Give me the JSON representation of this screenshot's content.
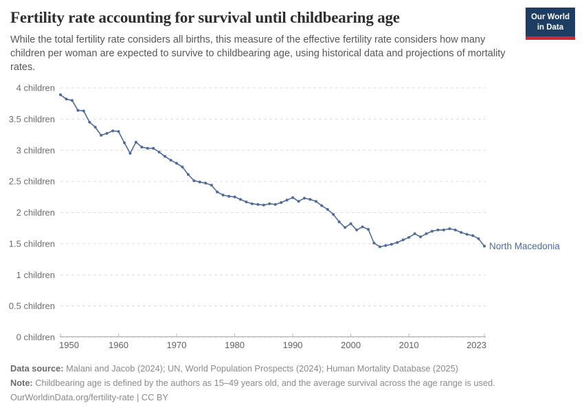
{
  "header": {
    "title": "Fertility rate accounting for survival until childbearing age",
    "subtitle": "While the total fertility rate considers all births, this measure of the effective fertility rate considers how many children per woman are expected to survive to childbearing age, using historical data and projections of mortality rates.",
    "logo": {
      "line1": "Our World",
      "line2": "in Data"
    }
  },
  "chart_data": {
    "type": "line",
    "title": "Fertility rate accounting for survival until childbearing age",
    "xlabel": "",
    "ylabel": "",
    "xlim": [
      1950,
      2023
    ],
    "ylim": [
      0,
      4
    ],
    "grid": "horizontal-dashed",
    "legend_position": "line-end-label",
    "xticks": [
      1950,
      1960,
      1970,
      1980,
      1990,
      2000,
      2010,
      2023
    ],
    "yticks": [
      0,
      0.5,
      1,
      1.5,
      2,
      2.5,
      3,
      3.5,
      4
    ],
    "ytick_labels": [
      "0 children",
      "0.5 children",
      "1 children",
      "1.5 children",
      "2 children",
      "2.5 children",
      "3 children",
      "3.5 children",
      "4 children"
    ],
    "series": [
      {
        "name": "North Macedonia",
        "color": "#4C6A9C",
        "x": [
          1950,
          1951,
          1952,
          1953,
          1954,
          1955,
          1956,
          1957,
          1958,
          1959,
          1960,
          1961,
          1962,
          1963,
          1964,
          1965,
          1966,
          1967,
          1968,
          1969,
          1970,
          1971,
          1972,
          1973,
          1974,
          1975,
          1976,
          1977,
          1978,
          1979,
          1980,
          1981,
          1982,
          1983,
          1984,
          1985,
          1986,
          1987,
          1988,
          1989,
          1990,
          1991,
          1992,
          1993,
          1994,
          1995,
          1996,
          1997,
          1998,
          1999,
          2000,
          2001,
          2002,
          2003,
          2004,
          2005,
          2006,
          2007,
          2008,
          2009,
          2010,
          2011,
          2012,
          2013,
          2014,
          2015,
          2016,
          2017,
          2018,
          2019,
          2020,
          2021,
          2022,
          2023
        ],
        "values": [
          3.89,
          3.82,
          3.8,
          3.64,
          3.63,
          3.45,
          3.37,
          3.24,
          3.27,
          3.31,
          3.3,
          3.12,
          2.95,
          3.13,
          3.05,
          3.03,
          3.03,
          2.97,
          2.9,
          2.84,
          2.79,
          2.73,
          2.61,
          2.51,
          2.49,
          2.47,
          2.44,
          2.33,
          2.28,
          2.26,
          2.25,
          2.21,
          2.17,
          2.14,
          2.13,
          2.12,
          2.14,
          2.13,
          2.16,
          2.2,
          2.24,
          2.18,
          2.23,
          2.21,
          2.18,
          2.11,
          2.05,
          1.97,
          1.85,
          1.76,
          1.82,
          1.72,
          1.77,
          1.73,
          1.51,
          1.45,
          1.47,
          1.49,
          1.52,
          1.56,
          1.6,
          1.66,
          1.61,
          1.66,
          1.7,
          1.72,
          1.72,
          1.74,
          1.72,
          1.68,
          1.65,
          1.63,
          1.58,
          1.46
        ]
      }
    ]
  },
  "footer": {
    "datasource_label": "Data source:",
    "datasource": "Malani and Jacob (2024); UN, World Population Prospects (2024); Human Mortality Database (2025)",
    "note_label": "Note:",
    "note": "Childbearing age is defined by the authors as 15–49 years old, and the average survival across the age range is used.",
    "url": "OurWorldinData.org/fertility-rate",
    "separator": " | ",
    "license": "CC BY"
  },
  "colors": {
    "line": "#4C6A9C",
    "entity_label": "#4C6A9C",
    "gridline": "#dcdcdc",
    "axis_line": "#a5a5a5",
    "tick": "#b5b5b5",
    "ytick_text": "#6e6e6e",
    "xtick_text": "#606060",
    "logo_bg": "#1d3d63",
    "logo_bar": "#c92a34"
  }
}
